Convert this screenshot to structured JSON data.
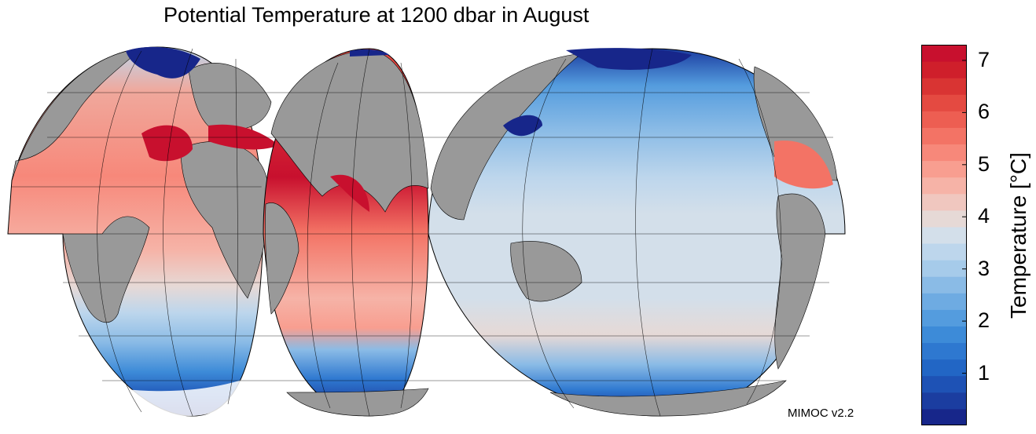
{
  "title": "Potential Temperature at 1200 dbar in August",
  "credit": "MIMOC v2.2",
  "colorbar": {
    "title": "Temperature [°C]",
    "ticks": [
      "1",
      "2",
      "3",
      "4",
      "5",
      "6",
      "7"
    ],
    "range": [
      0,
      7.3
    ],
    "colors": [
      "#17268a",
      "#1b3da0",
      "#1e52b5",
      "#2266c5",
      "#2e78d0",
      "#3d8bd8",
      "#549cde",
      "#6eabe2",
      "#8abbe6",
      "#a6cbea",
      "#bdd6ec",
      "#d3dfea",
      "#e6d9d6",
      "#f0c7bf",
      "#f6b3a7",
      "#f89e90",
      "#f7887a",
      "#f37365",
      "#ed5e52",
      "#e44a41",
      "#d93433",
      "#cf1f2b",
      "#c8102e"
    ],
    "land_color": "#999999"
  }
}
